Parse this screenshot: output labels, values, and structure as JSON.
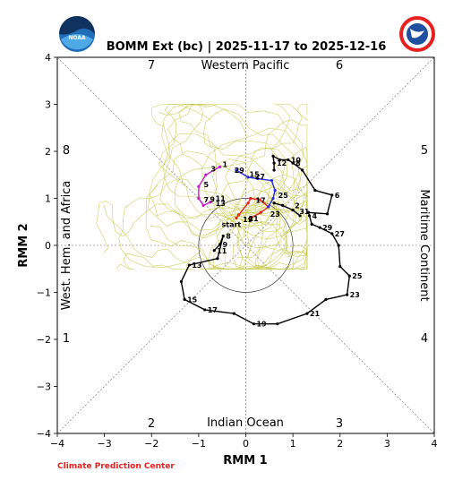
{
  "chart_data": {
    "type": "line",
    "title": "BOMM Ext (bc) | 2025-11-17 to 2025-12-16",
    "xlabel": "RMM 1",
    "ylabel": "RMM 2",
    "xlim": [
      -4,
      4
    ],
    "ylim": [
      -4,
      4
    ],
    "xticks": [
      "−4",
      "−3",
      "−2",
      "−1",
      "0",
      "1",
      "2",
      "3",
      "4"
    ],
    "yticks": [
      "−4",
      "−3",
      "−2",
      "−1",
      "0",
      "1",
      "2",
      "3",
      "4"
    ],
    "grid": false,
    "regions": {
      "top": "Western Pacific",
      "bottom": "Indian Ocean",
      "left": "West. Hem. and Africa",
      "right": "Maritime Continent"
    },
    "phases": [
      "1",
      "2",
      "3",
      "4",
      "5",
      "6",
      "7",
      "8"
    ],
    "start_label": "start",
    "credit": "Climate Prediction Center",
    "colors": {
      "observed": "#000000",
      "red": "#e8201f",
      "blue": "#2b2be0",
      "magenta": "#c21fc2",
      "ensemble": "#c8c84a"
    },
    "observed": [
      {
        "x": -0.67,
        "y": -0.11,
        "label": "11"
      },
      {
        "x": -0.55,
        "y": 0.02,
        "label": "9"
      },
      {
        "x": -0.48,
        "y": 0.2,
        "label": "8"
      },
      {
        "x": -0.6,
        "y": -0.28,
        "label": ""
      },
      {
        "x": -1.2,
        "y": -0.42,
        "label": "13"
      },
      {
        "x": -1.37,
        "y": -0.77,
        "label": ""
      },
      {
        "x": -1.3,
        "y": -1.15,
        "label": "15"
      },
      {
        "x": -0.87,
        "y": -1.37,
        "label": "17"
      },
      {
        "x": -0.25,
        "y": -1.45,
        "label": ""
      },
      {
        "x": 0.17,
        "y": -1.67,
        "label": "19"
      },
      {
        "x": 0.67,
        "y": -1.67,
        "label": ""
      },
      {
        "x": 1.3,
        "y": -1.45,
        "label": "21"
      },
      {
        "x": 1.7,
        "y": -1.15,
        "label": ""
      },
      {
        "x": 2.15,
        "y": -1.05,
        "label": "23"
      },
      {
        "x": 2.2,
        "y": -0.65,
        "label": "25"
      },
      {
        "x": 2.0,
        "y": -0.45,
        "label": ""
      },
      {
        "x": 1.97,
        "y": 0.0,
        "label": ""
      },
      {
        "x": 1.83,
        "y": 0.25,
        "label": "27"
      },
      {
        "x": 1.57,
        "y": 0.38,
        "label": "29"
      },
      {
        "x": 1.4,
        "y": 0.45,
        "label": ""
      },
      {
        "x": 1.35,
        "y": 0.63,
        "label": "4"
      },
      {
        "x": 1.33,
        "y": 0.7,
        "label": ""
      },
      {
        "x": 1.73,
        "y": 0.67,
        "label": ""
      },
      {
        "x": 1.83,
        "y": 1.07,
        "label": "6"
      },
      {
        "x": 1.47,
        "y": 1.17,
        "label": ""
      },
      {
        "x": 1.2,
        "y": 1.6,
        "label": ""
      },
      {
        "x": 1.0,
        "y": 1.75,
        "label": "8"
      },
      {
        "x": 0.9,
        "y": 1.82,
        "label": "10"
      },
      {
        "x": 0.72,
        "y": 1.82,
        "label": ""
      },
      {
        "x": 0.58,
        "y": 1.9,
        "label": ""
      },
      {
        "x": 0.6,
        "y": 1.75,
        "label": "12"
      },
      {
        "x": 0.6,
        "y": 1.6,
        "label": ""
      }
    ],
    "black_tail": [
      {
        "x": 0.6,
        "y": 0.9
      },
      {
        "x": 0.78,
        "y": 0.85
      },
      {
        "x": 1.0,
        "y": 0.75
      },
      {
        "x": 1.15,
        "y": 0.63
      }
    ],
    "black_tail_labels": [
      {
        "x": 0.98,
        "y": 0.85,
        "label": "2"
      },
      {
        "x": 1.08,
        "y": 0.72,
        "label": "31"
      }
    ],
    "forecast_red": [
      {
        "x": -0.2,
        "y": 0.58
      },
      {
        "x": -0.15,
        "y": 0.65
      },
      {
        "x": 0.05,
        "y": 0.9
      },
      {
        "x": 0.1,
        "y": 1.0
      },
      {
        "x": 0.3,
        "y": 0.97
      },
      {
        "x": 0.48,
        "y": 0.82
      },
      {
        "x": 0.32,
        "y": 0.7
      },
      {
        "x": 0.1,
        "y": 0.58
      }
    ],
    "forecast_blue": [
      {
        "x": -0.2,
        "y": 1.6
      },
      {
        "x": 0.05,
        "y": 1.45
      },
      {
        "x": 0.25,
        "y": 1.42
      },
      {
        "x": 0.55,
        "y": 1.38
      },
      {
        "x": 0.62,
        "y": 1.17
      },
      {
        "x": 0.58,
        "y": 1.0
      },
      {
        "x": 0.48,
        "y": 0.82
      }
    ],
    "forecast_magenta": [
      {
        "x": -0.55,
        "y": 1.67
      },
      {
        "x": -0.85,
        "y": 1.5
      },
      {
        "x": -1.0,
        "y": 1.25
      },
      {
        "x": -1.0,
        "y": 1.0
      },
      {
        "x": -0.9,
        "y": 0.85
      },
      {
        "x": -0.75,
        "y": 0.92
      }
    ],
    "forecast_labels": [
      {
        "x": -0.12,
        "y": 0.55,
        "label": "19"
      },
      {
        "x": 0.0,
        "y": 0.57,
        "label": "21"
      },
      {
        "x": 0.15,
        "y": 0.96,
        "label": "17"
      },
      {
        "x": 0.46,
        "y": 0.67,
        "label": "23"
      },
      {
        "x": 0.63,
        "y": 1.07,
        "label": "25"
      },
      {
        "x": 0.14,
        "y": 1.47,
        "label": "27"
      },
      {
        "x": 0.02,
        "y": 1.51,
        "label": "15"
      },
      {
        "x": -0.3,
        "y": 1.6,
        "label": "29"
      },
      {
        "x": -0.55,
        "y": 1.72,
        "label": "1"
      },
      {
        "x": -0.8,
        "y": 1.63,
        "label": "3"
      },
      {
        "x": -0.95,
        "y": 1.3,
        "label": "5"
      },
      {
        "x": -0.95,
        "y": 0.97,
        "label": "7"
      },
      {
        "x": -0.82,
        "y": 0.98,
        "label": "9"
      },
      {
        "x": -0.7,
        "y": 1.0,
        "label": "11"
      },
      {
        "x": -0.7,
        "y": 0.9,
        "label": "13"
      },
      {
        "x": -0.57,
        "y": 0.45,
        "label": "start"
      }
    ]
  }
}
